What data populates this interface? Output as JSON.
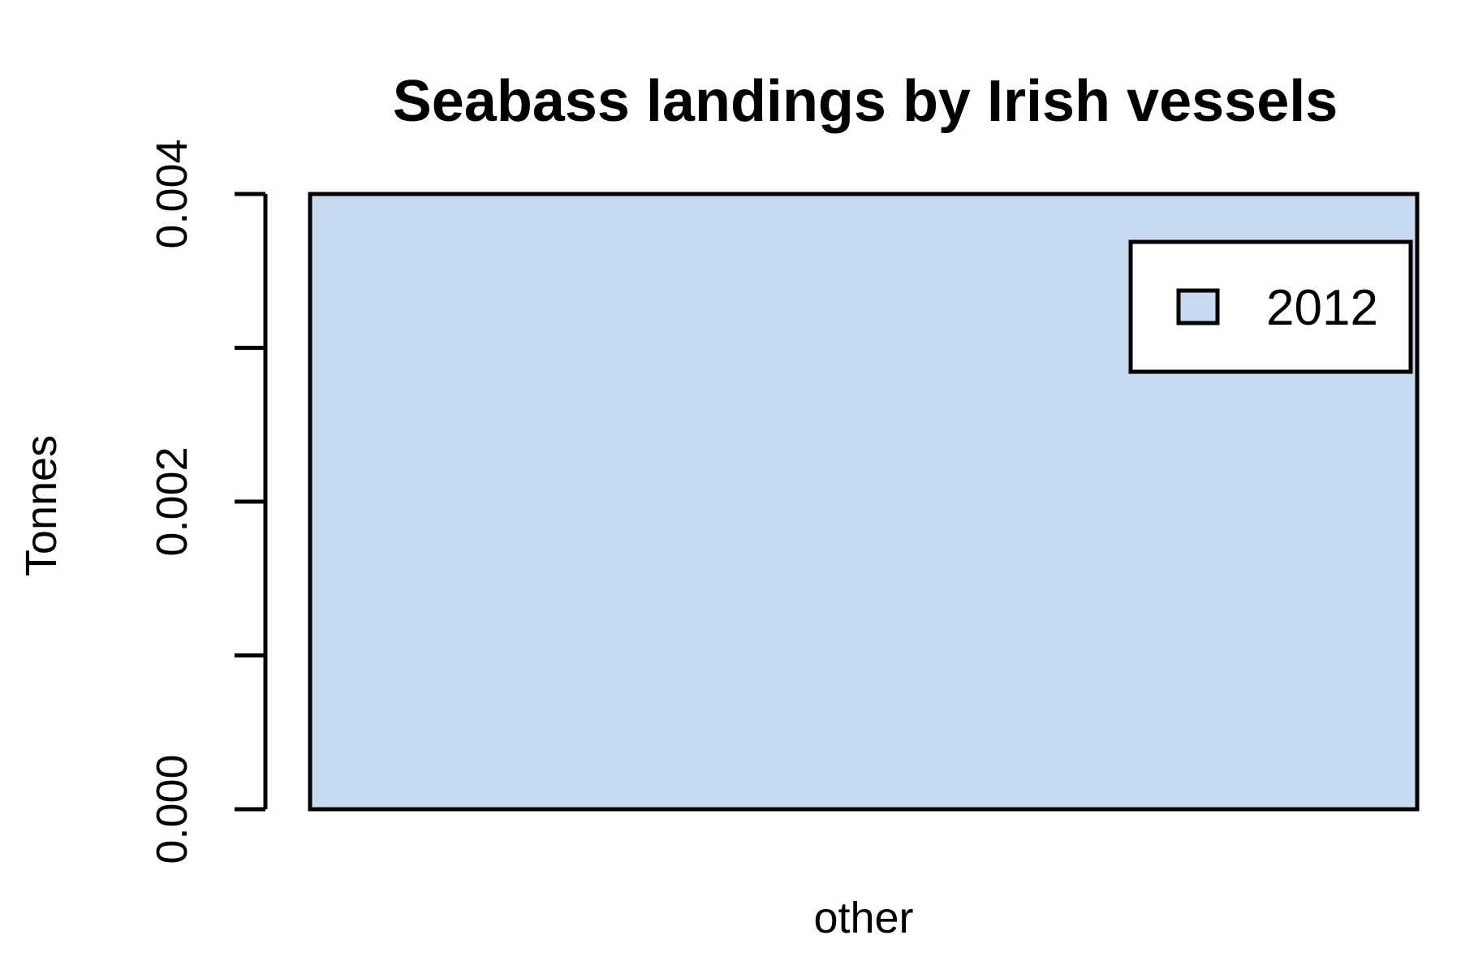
{
  "chart_data": {
    "type": "bar",
    "title": "Seabass landings by Irish vessels",
    "xlabel": "",
    "ylabel": "Tonnes",
    "categories": [
      "other"
    ],
    "series": [
      {
        "name": "2012",
        "values": [
          0.004
        ],
        "color": "#C6DBEF"
      }
    ],
    "ylim": [
      0,
      0.004
    ],
    "y_ticks": [
      0,
      0.001,
      0.002,
      0.003,
      0.004
    ],
    "y_tick_labels": [
      "0.000",
      "0.002",
      "0.004"
    ],
    "y_labeled_ticks": [
      0,
      0.002,
      0.004
    ],
    "grid": false,
    "legend_position": "top-right"
  }
}
